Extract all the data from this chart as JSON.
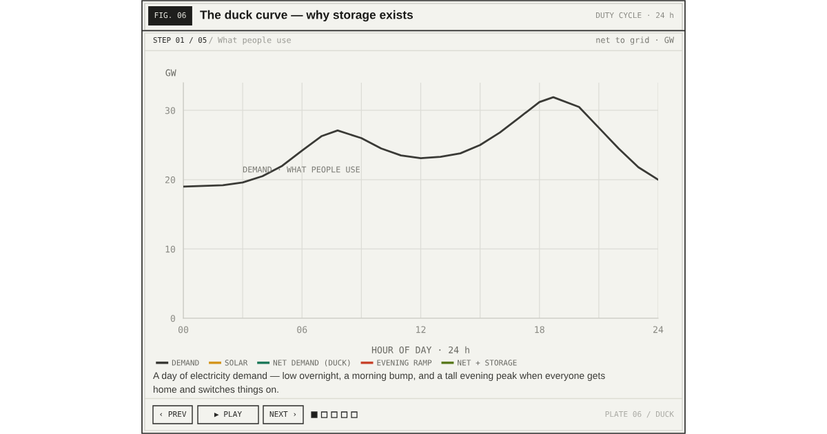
{
  "chart_data": {
    "type": "line",
    "title": "The duck curve — why storage exists",
    "subtitle": "What people use",
    "xlabel": "HOUR OF DAY · 24 h",
    "ylabel": "GW",
    "x": [
      0,
      2,
      3,
      4,
      5,
      6,
      7,
      7.8,
      9,
      10,
      11,
      12,
      13,
      14,
      15,
      16,
      17,
      18,
      18.7,
      20,
      21,
      22,
      23,
      24
    ],
    "series": [
      {
        "name": "DEMAND",
        "color": "#3a3a36",
        "values": [
          19.0,
          19.2,
          19.6,
          20.5,
          22.0,
          24.2,
          26.3,
          27.1,
          26.0,
          24.5,
          23.5,
          23.1,
          23.3,
          23.8,
          25.0,
          26.8,
          29.0,
          31.2,
          31.9,
          30.5,
          27.5,
          24.5,
          21.8,
          20.0
        ]
      },
      {
        "name": "SOLAR",
        "color": "#d4961e",
        "values": [
          null,
          null,
          null,
          null,
          null,
          null,
          null,
          null,
          null,
          null,
          null,
          null,
          null,
          null,
          null,
          null,
          null,
          null,
          null,
          null,
          null,
          null,
          null,
          null
        ]
      },
      {
        "name": "NET DEMAND (DUCK)",
        "color": "#1f7a5c",
        "values": [
          null,
          null,
          null,
          null,
          null,
          null,
          null,
          null,
          null,
          null,
          null,
          null,
          null,
          null,
          null,
          null,
          null,
          null,
          null,
          null,
          null,
          null,
          null,
          null
        ]
      },
      {
        "name": "EVENING RAMP",
        "color": "#c8442c",
        "values": [
          null,
          null,
          null,
          null,
          null,
          null,
          null,
          null,
          null,
          null,
          null,
          null,
          null,
          null,
          null,
          null,
          null,
          null,
          null,
          null,
          null,
          null,
          null,
          null
        ]
      },
      {
        "name": "NET + STORAGE",
        "color": "#5a7a1e",
        "values": [
          null,
          null,
          null,
          null,
          null,
          null,
          null,
          null,
          null,
          null,
          null,
          null,
          null,
          null,
          null,
          null,
          null,
          null,
          null,
          null,
          null,
          null,
          null,
          null
        ]
      }
    ],
    "xlim": [
      0,
      24
    ],
    "xticks": [
      {
        "value": 0,
        "label": "00"
      },
      {
        "value": 3,
        "label": null
      },
      {
        "value": 6,
        "label": "06"
      },
      {
        "value": 9,
        "label": null
      },
      {
        "value": 12,
        "label": "12"
      },
      {
        "value": 15,
        "label": null
      },
      {
        "value": 18,
        "label": "18"
      },
      {
        "value": 21,
        "label": null
      },
      {
        "value": 24,
        "label": "24"
      }
    ],
    "ylim": [
      0,
      34
    ],
    "yticks": [
      0,
      10,
      20,
      30
    ],
    "grid": true,
    "legend": "bottom",
    "marker": "none",
    "line_style": "solid",
    "annotations": [
      "DEMAND · WHAT PEOPLE USE",
      "FIG. 06",
      "DUTY CYCLE · 24 h",
      "STEP 01 / 05",
      "net to grid · GW",
      "A day of electricity demand — low overnight, a morning bump, and a tall evening peak when everyone gets home and switches things on.",
      "‹ PREV",
      "▶ PLAY",
      "NEXT ›",
      "PLATE 06 / DUCK",
      "/"
    ]
  }
}
